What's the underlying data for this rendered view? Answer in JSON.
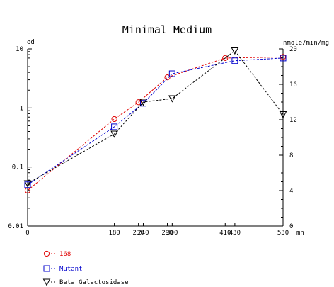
{
  "chart_data": {
    "type": "line",
    "title": "Minimal Medium",
    "x_unit": "mn",
    "left_axis": {
      "label": "od",
      "scale": "log",
      "range": [
        0.01,
        10
      ],
      "ticks": [
        "0.01",
        "0.1",
        "1",
        "10"
      ]
    },
    "right_axis": {
      "label": "nmole/min/mg",
      "scale": "linear",
      "range": [
        0,
        20
      ],
      "ticks": [
        "0",
        "4",
        "8",
        "12",
        "16",
        "20"
      ]
    },
    "x_range": [
      0,
      530
    ],
    "x_ticks": [
      "0",
      "180",
      "230",
      "240",
      "290",
      "300",
      "410",
      "430",
      "530"
    ],
    "grid": false,
    "legend_position": "bottom-left",
    "series": [
      {
        "name": "168",
        "axis": "left",
        "color": "#e00000",
        "marker": "circle",
        "x": [
          0,
          180,
          230,
          290,
          410,
          530
        ],
        "y": [
          0.04,
          0.65,
          1.25,
          3.3,
          7.0,
          7.3
        ]
      },
      {
        "name": "Mutant",
        "axis": "left",
        "color": "#0000cc",
        "marker": "square",
        "x": [
          0,
          180,
          240,
          300,
          430,
          530
        ],
        "y": [
          0.05,
          0.48,
          1.2,
          3.8,
          6.3,
          7.0
        ]
      },
      {
        "name": "Beta Galactosidase",
        "axis": "right",
        "color": "#000000",
        "marker": "triangle-down",
        "x": [
          0,
          180,
          240,
          300,
          430,
          530
        ],
        "y": [
          4.8,
          10.4,
          14.0,
          14.4,
          19.8,
          12.6
        ]
      }
    ]
  }
}
